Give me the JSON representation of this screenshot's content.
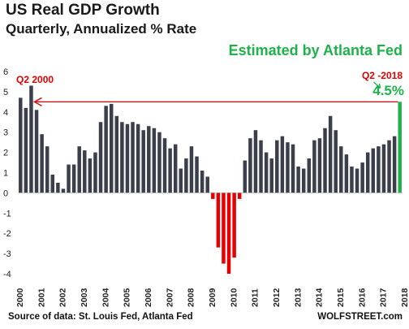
{
  "chart_data": {
    "type": "bar",
    "title": "US Real GDP Growth",
    "subtitle": "Quarterly, Annualized % Rate",
    "ylim": [
      -4,
      6
    ],
    "yticks": [
      6,
      5,
      4,
      3,
      2,
      1,
      0,
      -1,
      -2,
      -3,
      -4
    ],
    "year_labels": [
      "2000",
      "2001",
      "2002",
      "2003",
      "2004",
      "2005",
      "2006",
      "2007",
      "2008",
      "2009",
      "2010",
      "2011",
      "2012",
      "2013",
      "2014",
      "2015",
      "2016",
      "2017",
      "2018"
    ],
    "values": [
      4.7,
      4.2,
      5.3,
      4.1,
      2.9,
      2.3,
      0.9,
      0.5,
      0.2,
      1.4,
      1.4,
      2.3,
      2.1,
      1.7,
      2.0,
      3.5,
      4.3,
      4.4,
      3.8,
      3.5,
      3.4,
      3.5,
      3.4,
      3.1,
      3.3,
      3.2,
      3.0,
      2.7,
      2.2,
      2.4,
      1.2,
      1.7,
      2.3,
      1.8,
      1.1,
      0.8,
      -0.3,
      -2.7,
      -3.5,
      -4.0,
      -3.2,
      -0.3,
      1.6,
      2.7,
      3.1,
      2.6,
      2.0,
      1.7,
      2.6,
      2.8,
      2.5,
      2.4,
      1.3,
      1.2,
      1.7,
      2.6,
      2.7,
      3.2,
      3.8,
      3.1,
      2.3,
      1.9,
      1.3,
      1.2,
      1.5,
      2.0,
      2.2,
      2.3,
      2.4,
      2.6,
      2.8
    ],
    "estimate_value": 4.5,
    "reference_line_value": 4.5,
    "colors": {
      "positive": "#3a3f4b",
      "negative": "#e60000",
      "estimate": "#1db34a",
      "reference": "#e00000"
    }
  },
  "annotations": {
    "q2_2000": "Q2 2000",
    "q2_2018": "Q2 -2018",
    "estimate_value_label": "4.5%",
    "estimate_label": "Estimated by Atlanta Fed"
  },
  "footer": {
    "source": "Source of data: St. Louis Fed, Atlanta Fed",
    "brand": "WOLFSTREET.com"
  }
}
